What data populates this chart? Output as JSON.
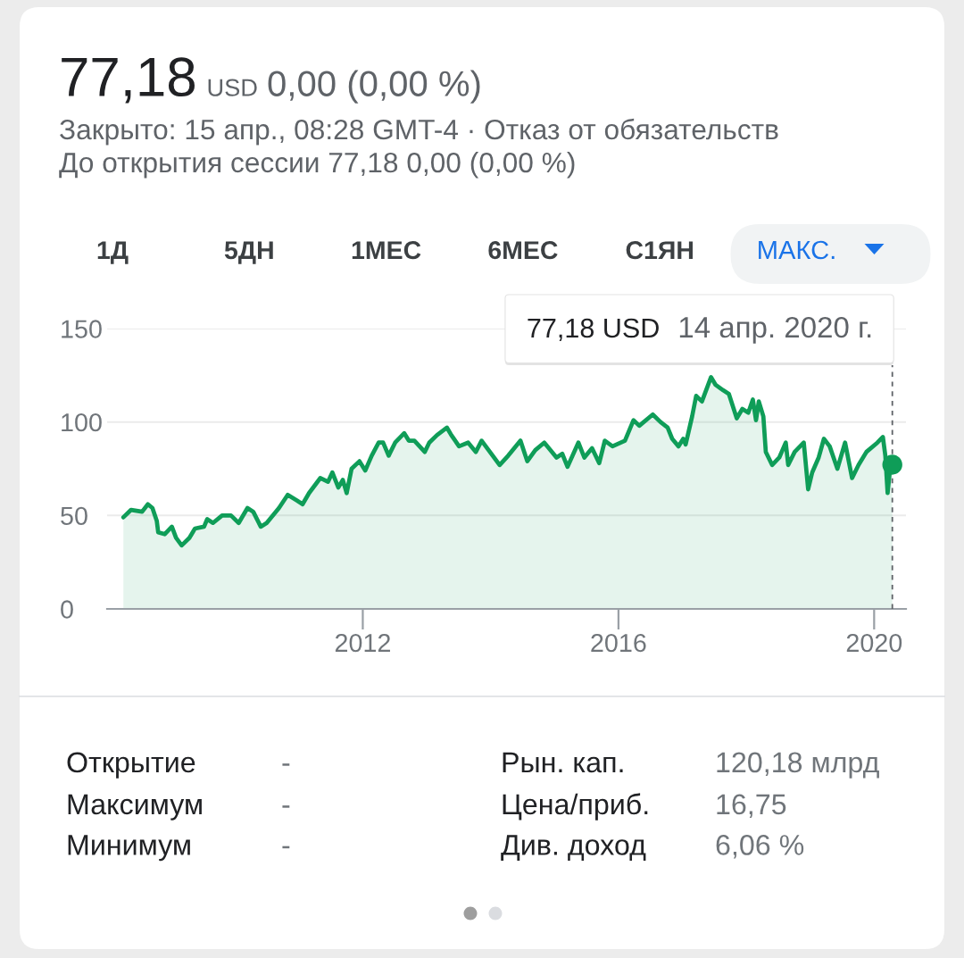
{
  "chart_data": [
    {
      "type": "area",
      "title": "77,18",
      "annotations": [
        "USD",
        "0,00 (0,00 %)",
        "Закрыто: 15 апр., 08:28 GMT-4 · Отказ от обязательств",
        "До открытия сессии 77,18 0,00 (0,00 %)",
        "1Д",
        "5ДН",
        "1МЕС",
        "6МЕС",
        "С1ЯН",
        "МАКС.",
        "77,18 USD",
        "14 апр. 2020 г."
      ],
      "series": [
        {
          "color": "#0f9d58",
          "x": [
            "2008-04-03",
            "2008-05-17",
            "2008-07-19",
            "2008-08-21",
            "2008-09-16",
            "2008-10-11",
            "2008-10-19",
            "2008-11-25",
            "2009-01-05",
            "2009-01-29",
            "2009-03-02",
            "2009-04-15",
            "2009-05-17",
            "2009-07-08",
            "2009-07-26",
            "2009-08-28",
            "2009-10-19",
            "2009-12-09",
            "2010-01-22",
            "2010-03-13",
            "2010-04-15",
            "2010-05-28",
            "2010-07-01",
            "2010-09-09",
            "2010-10-29",
            "2010-12-20",
            "2011-01-22",
            "2011-02-28",
            "2011-05-03",
            "2011-06-16",
            "2011-07-11",
            "2011-08-14",
            "2011-09-09",
            "2011-10-01",
            "2011-10-29",
            "2011-12-13",
            "2012-01-15",
            "2012-02-21",
            "2012-04-01",
            "2012-04-26",
            "2012-05-28",
            "2012-07-04",
            "2012-08-25",
            "2012-09-20",
            "2012-10-22",
            "2012-12-20",
            "2013-01-15",
            "2013-02-28",
            "2013-04-26",
            "2013-05-21",
            "2013-07-04",
            "2013-08-25",
            "2013-10-08",
            "2013-11-10",
            "2014-02-21",
            "2014-04-11",
            "2014-06-20",
            "2014-07-29",
            "2014-09-13",
            "2014-11-03",
            "2015-01-12",
            "2015-02-14",
            "2015-03-16",
            "2015-05-17",
            "2015-06-20",
            "2015-08-03",
            "2015-09-13",
            "2015-10-15",
            "2015-11-28",
            "2016-02-07",
            "2016-03-27",
            "2016-04-29",
            "2016-07-15",
            "2016-08-28",
            "2016-10-08",
            "2016-11-03",
            "2016-12-09",
            "2017-01-05",
            "2017-01-19",
            "2017-02-25",
            "2017-03-20",
            "2017-04-22",
            "2017-06-13",
            "2017-07-08",
            "2017-08-21",
            "2017-09-23",
            "2017-11-07",
            "2017-12-09",
            "2018-01-12",
            "2018-02-07",
            "2018-02-25",
            "2018-03-13",
            "2018-04-08",
            "2018-04-22",
            "2018-05-28",
            "2018-07-08",
            "2018-08-14",
            "2018-08-28",
            "2018-10-04",
            "2018-11-25",
            "2018-12-20",
            "2019-01-12",
            "2019-02-18",
            "2019-03-20",
            "2019-04-22",
            "2019-06-05",
            "2019-07-19",
            "2019-08-28",
            "2019-10-04",
            "2019-11-18",
            "2020-01-20",
            "2020-02-20",
            "2020-03-05",
            "2020-03-18",
            "2020-03-31",
            "2020-04-14"
          ],
          "values": [
            49,
            53,
            52,
            56,
            54,
            47,
            41,
            40,
            44,
            38,
            34,
            38,
            43,
            44,
            48,
            46,
            50,
            50,
            46,
            54,
            52,
            44,
            46,
            54,
            61,
            58,
            56,
            62,
            70,
            68,
            73,
            65,
            69,
            62,
            75,
            79,
            74,
            82,
            89,
            89,
            82,
            89,
            94,
            90,
            90,
            84,
            89,
            93,
            97,
            93,
            87,
            89,
            84,
            90,
            77,
            82,
            90,
            79,
            85,
            89,
            81,
            83,
            76,
            89,
            81,
            86,
            78,
            90,
            87,
            90,
            101,
            98,
            104,
            100,
            97,
            91,
            87,
            91,
            88,
            103,
            114,
            111,
            124,
            120,
            117,
            115,
            102,
            107,
            105,
            112,
            101,
            111,
            103,
            84,
            77,
            81,
            89,
            77,
            84,
            89,
            64,
            73,
            81,
            91,
            87,
            75,
            89,
            70,
            77,
            84,
            89,
            92,
            82,
            62,
            74,
            77.18
          ]
        },
        {
          "type": "scatter",
          "color": "#0f9d58",
          "marker": "circle",
          "x": [
            "2020-04-14"
          ],
          "values": [
            77.18
          ]
        }
      ],
      "xlim": [
        "2008-01-01",
        "2020-07-01"
      ],
      "xticks": [
        "2012",
        "2016",
        "2020"
      ],
      "ylim": [
        0,
        150
      ],
      "yticks": [
        0,
        50,
        100,
        150
      ],
      "grid": "y",
      "ref_lines": [
        {
          "axis": "x",
          "value": "2020-04-14",
          "line_style": "dashed",
          "color": "#5f6368"
        }
      ]
    },
    {
      "type": "other",
      "annotations": [
        "Открытие",
        "-",
        "Рын. кап.",
        "120,18 млрд",
        "Максимум",
        "-",
        "Цена/приб.",
        "16,75",
        "Минимум",
        "-",
        "Див. доход",
        "6,06 %"
      ]
    }
  ]
}
